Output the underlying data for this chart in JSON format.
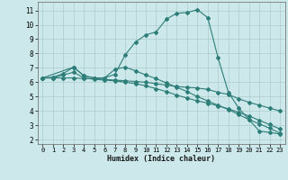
{
  "xlabel": "Humidex (Indice chaleur)",
  "bg_color": "#cce8ea",
  "grid_color": "#aacccc",
  "line_color": "#2d7d78",
  "xlim": [
    -0.5,
    23.5
  ],
  "ylim": [
    1.7,
    11.6
  ],
  "xticks": [
    0,
    1,
    2,
    3,
    4,
    5,
    6,
    7,
    8,
    9,
    10,
    11,
    12,
    13,
    14,
    15,
    16,
    17,
    18,
    19,
    20,
    21,
    22,
    23
  ],
  "yticks": [
    2,
    3,
    4,
    5,
    6,
    7,
    8,
    9,
    10,
    11
  ],
  "curve1_x": [
    0,
    1,
    2,
    3,
    4,
    5,
    6,
    7,
    8,
    9,
    10,
    11,
    12,
    13,
    14,
    15,
    16,
    17,
    18,
    19,
    20,
    21,
    22,
    23
  ],
  "curve1_y": [
    6.3,
    6.35,
    6.6,
    7.05,
    6.45,
    6.3,
    6.3,
    6.55,
    7.9,
    8.8,
    9.3,
    9.5,
    10.4,
    10.8,
    10.85,
    11.05,
    10.5,
    7.7,
    5.3,
    4.2,
    3.4,
    2.6,
    2.5,
    2.4
  ],
  "curve2_x": [
    0,
    1,
    2,
    3,
    4,
    5,
    6,
    7,
    8,
    9,
    10,
    11,
    12,
    13,
    14,
    15,
    16,
    17,
    18,
    19,
    20,
    21,
    22,
    23
  ],
  "curve2_y": [
    6.3,
    6.3,
    6.3,
    6.3,
    6.25,
    6.25,
    6.2,
    6.15,
    6.1,
    6.05,
    6.0,
    5.9,
    5.8,
    5.7,
    5.65,
    5.6,
    5.5,
    5.3,
    5.15,
    4.85,
    4.6,
    4.4,
    4.2,
    4.0
  ],
  "curve3_x": [
    0,
    3,
    4,
    5,
    6,
    7,
    8,
    9,
    10,
    11,
    12,
    13,
    14,
    15,
    16,
    17,
    18,
    19,
    20,
    21,
    22,
    23
  ],
  "curve3_y": [
    6.3,
    7.05,
    6.45,
    6.3,
    6.3,
    6.9,
    7.05,
    6.8,
    6.5,
    6.25,
    5.95,
    5.65,
    5.35,
    5.0,
    4.7,
    4.4,
    4.1,
    3.75,
    3.4,
    3.1,
    2.8,
    2.45
  ],
  "curve4_x": [
    0,
    1,
    2,
    3,
    4,
    5,
    6,
    7,
    8,
    9,
    10,
    11,
    12,
    13,
    14,
    15,
    16,
    17,
    18,
    19,
    20,
    21,
    22,
    23
  ],
  "curve4_y": [
    6.3,
    6.3,
    6.5,
    6.7,
    6.3,
    6.2,
    6.15,
    6.1,
    6.0,
    5.9,
    5.75,
    5.55,
    5.35,
    5.1,
    4.9,
    4.7,
    4.55,
    4.35,
    4.15,
    3.9,
    3.65,
    3.35,
    3.05,
    2.75
  ]
}
